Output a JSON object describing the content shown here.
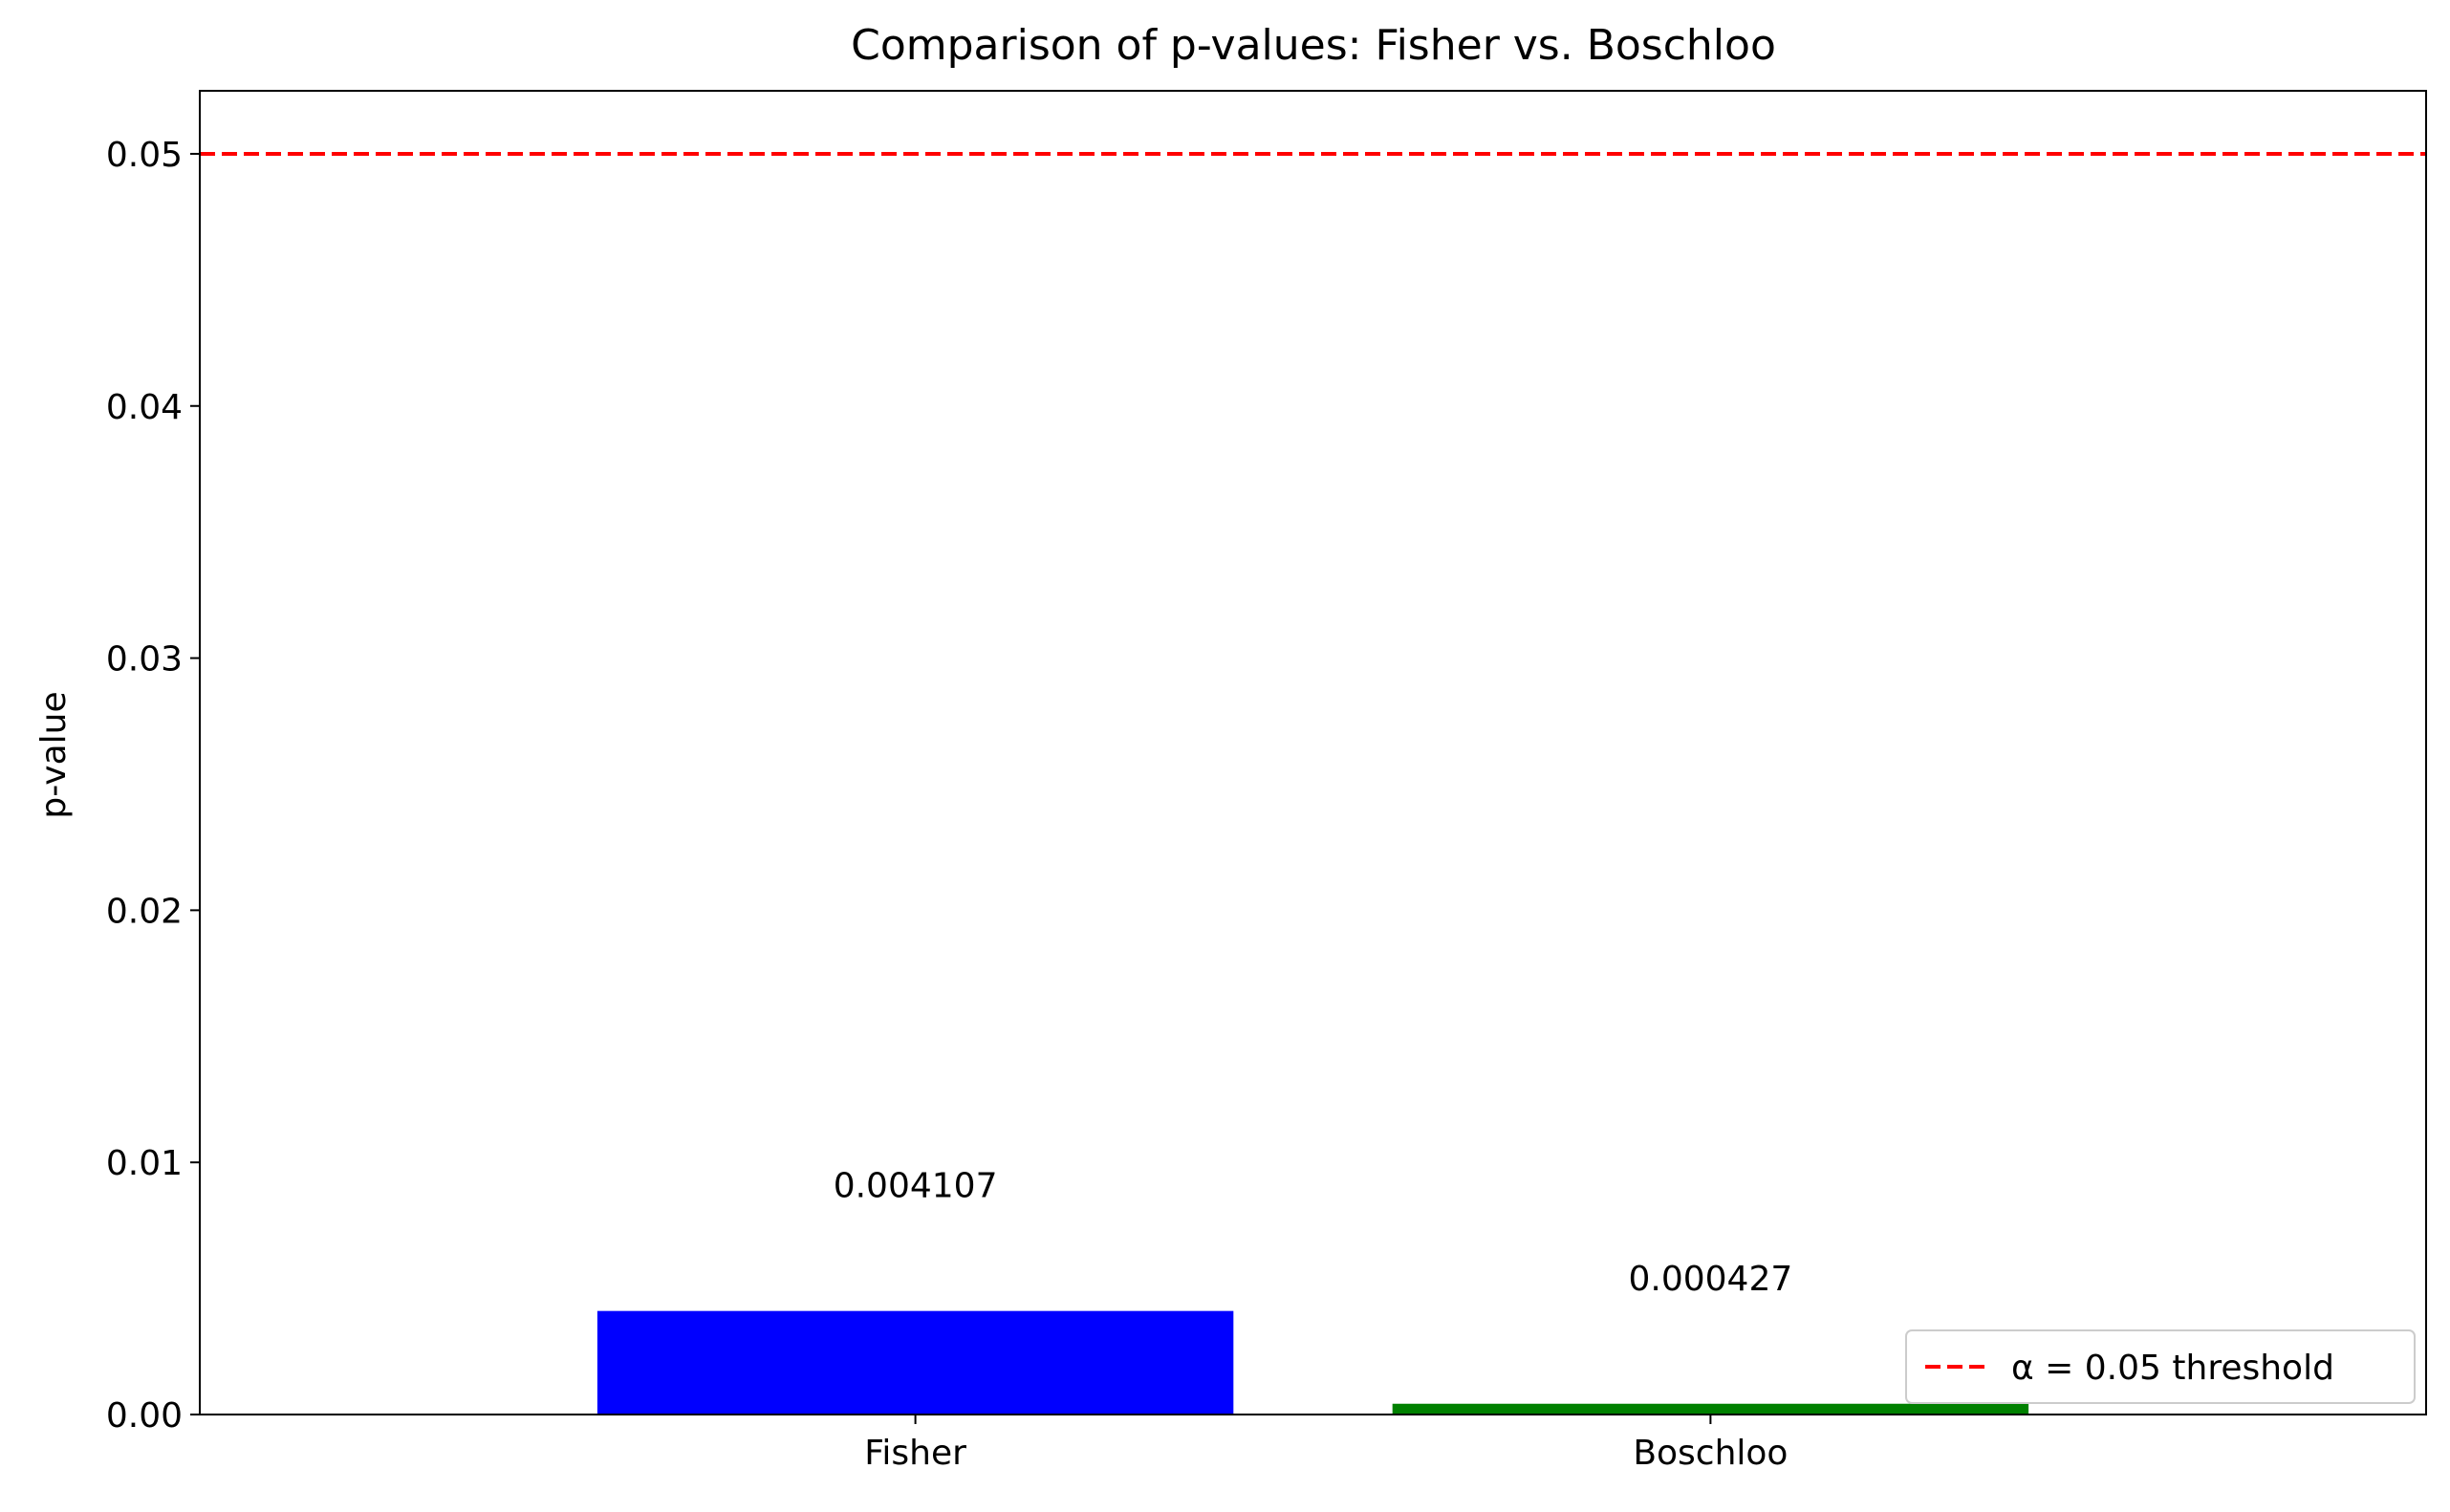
{
  "chart_data": {
    "type": "bar",
    "title": "Comparison of p-values: Fisher vs. Boschloo",
    "xlabel": "",
    "ylabel": "p-value",
    "categories": [
      "Fisher",
      "Boschloo"
    ],
    "values": [
      0.004107,
      0.000427
    ],
    "value_labels": [
      "0.004107",
      "0.000427"
    ],
    "bar_colors": [
      "#0000ff",
      "#008000"
    ],
    "ylim": [
      0,
      0.0525
    ],
    "yticks": [
      0.0,
      0.01,
      0.02,
      0.03,
      0.04,
      0.05
    ],
    "ytick_labels": [
      "0.00",
      "0.01",
      "0.02",
      "0.03",
      "0.04",
      "0.05"
    ],
    "reference_line": {
      "value": 0.05,
      "label": "α = 0.05 threshold",
      "color": "#ff0000",
      "style": "dashed"
    },
    "legend": {
      "placement": "bottom-right",
      "entries": [
        "α = 0.05 threshold"
      ]
    },
    "grid": false
  }
}
